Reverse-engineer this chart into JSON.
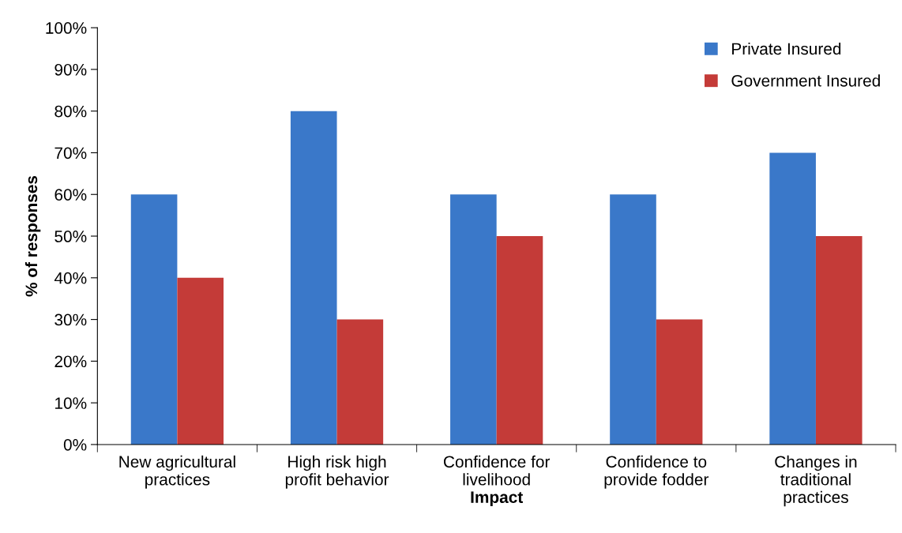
{
  "chart_data": {
    "type": "bar",
    "xlabel": "Impact",
    "ylabel": "% of responses",
    "categories": [
      "New agricultural practices",
      "High risk high profit behavior",
      "Confidence for livelihood",
      "Confidence to provide fodder",
      "Changes in traditional practices"
    ],
    "series": [
      {
        "name": "Private Insured",
        "color": "#3a78c9",
        "values": [
          60,
          80,
          60,
          60,
          70
        ]
      },
      {
        "name": "Government Insured",
        "color": "#c43b38",
        "values": [
          40,
          30,
          50,
          30,
          50
        ]
      }
    ],
    "ylim": [
      0,
      100
    ],
    "yticks": [
      {
        "value": 0,
        "label": "0%"
      },
      {
        "value": 10,
        "label": "10%"
      },
      {
        "value": 20,
        "label": "20%"
      },
      {
        "value": 30,
        "label": "30%"
      },
      {
        "value": 40,
        "label": "40%"
      },
      {
        "value": 50,
        "label": "50%"
      },
      {
        "value": 60,
        "label": "60%"
      },
      {
        "value": 70,
        "label": "70%"
      },
      {
        "value": 80,
        "label": "80%"
      },
      {
        "value": 90,
        "label": "90%"
      },
      {
        "value": 100,
        "label": "100%"
      }
    ],
    "grid": false,
    "legend": "top right"
  }
}
